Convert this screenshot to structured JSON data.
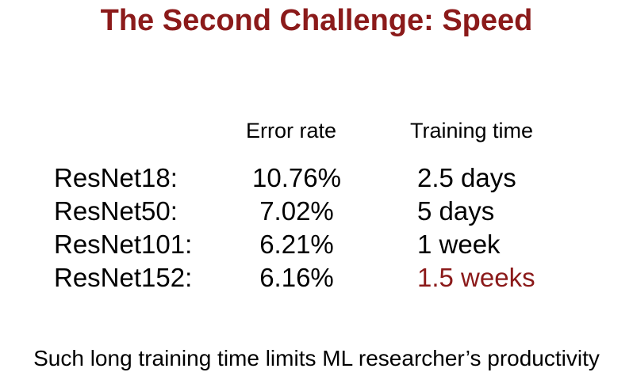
{
  "slide": {
    "title": "The Second Challenge: Speed",
    "title_color": "#8b1a1a",
    "accent_color": "#8b1a1a",
    "table": {
      "headers": {
        "error_rate": "Error rate",
        "training_time": "Training time"
      },
      "rows": [
        {
          "model": "ResNet18:",
          "error_rate": "10.76%",
          "training_time": "2.5 days",
          "highlight": false
        },
        {
          "model": "ResNet50:",
          "error_rate": "7.02%",
          "training_time": "5 days",
          "highlight": false
        },
        {
          "model": "ResNet101:",
          "error_rate": "6.21%",
          "training_time": "1 week",
          "highlight": false
        },
        {
          "model": "ResNet152:",
          "error_rate": "6.16%",
          "training_time": "1.5 weeks",
          "highlight": true
        }
      ]
    },
    "footer": "Such long training time limits ML researcher’s productivity"
  }
}
